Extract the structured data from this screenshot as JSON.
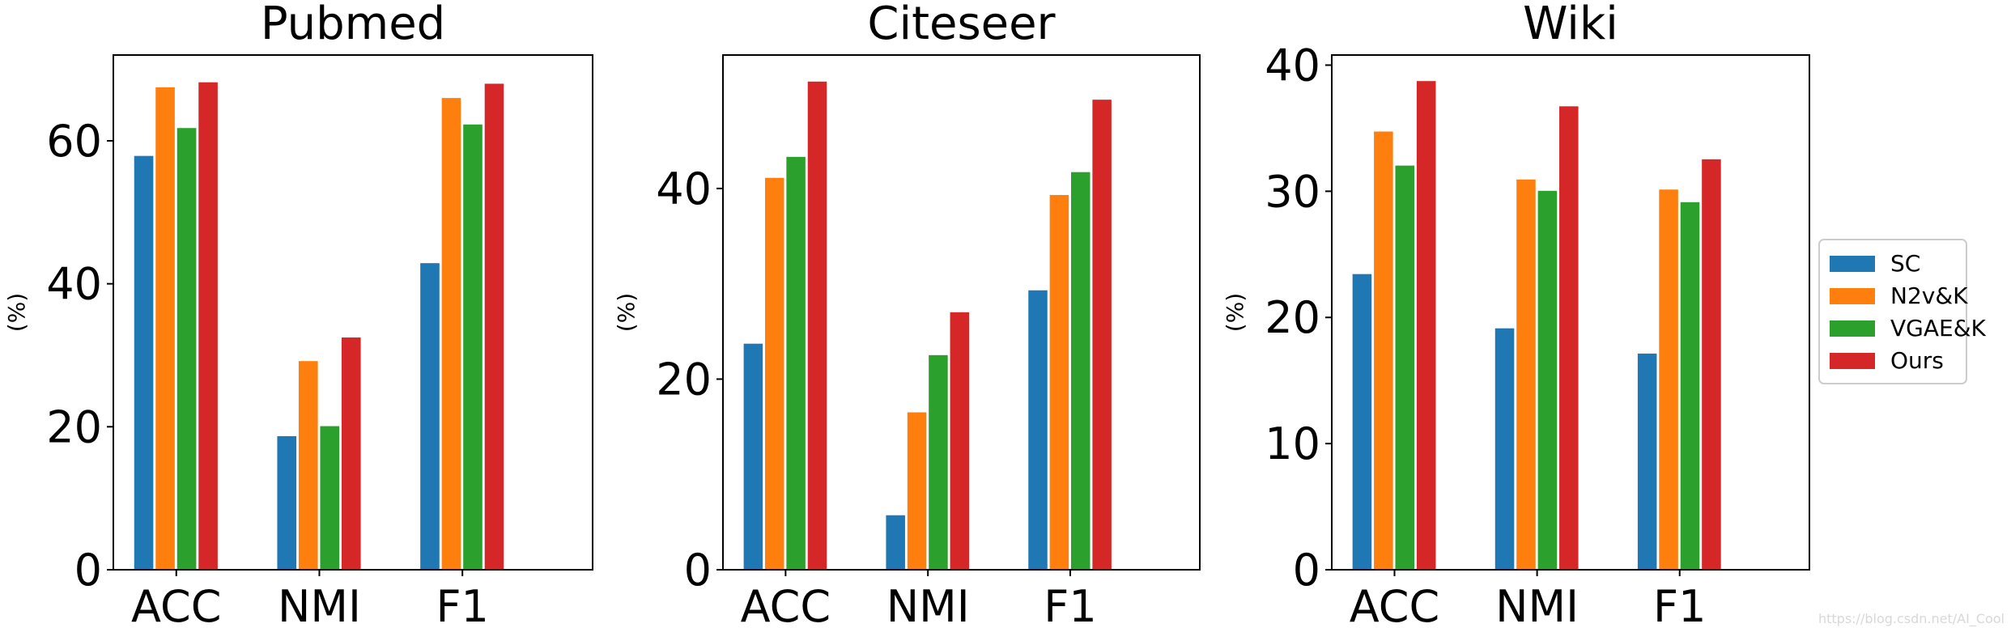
{
  "chart_data": [
    {
      "type": "bar",
      "title": "Pubmed",
      "ylabel": "(%)",
      "categories": [
        "ACC",
        "NMI",
        "F1"
      ],
      "ylim": [
        0,
        72
      ],
      "yticks": [
        0,
        20,
        40,
        60
      ],
      "series": [
        {
          "name": "SC",
          "values": [
            58.0,
            18.8,
            43.0
          ]
        },
        {
          "name": "N2v&K",
          "values": [
            67.6,
            29.3,
            66.1
          ]
        },
        {
          "name": "VGAE&K",
          "values": [
            61.9,
            20.2,
            62.4
          ]
        },
        {
          "name": "Ours",
          "values": [
            68.3,
            32.6,
            68.1
          ]
        }
      ]
    },
    {
      "type": "bar",
      "title": "Citeseer",
      "ylabel": "(%)",
      "categories": [
        "ACC",
        "NMI",
        "F1"
      ],
      "ylim": [
        0,
        54
      ],
      "yticks": [
        0,
        20,
        40
      ],
      "series": [
        {
          "name": "SC",
          "values": [
            23.8,
            5.8,
            29.4
          ]
        },
        {
          "name": "N2v&K",
          "values": [
            41.2,
            16.6,
            39.4
          ]
        },
        {
          "name": "VGAE&K",
          "values": [
            43.4,
            22.6,
            41.8
          ]
        },
        {
          "name": "Ours",
          "values": [
            51.3,
            27.1,
            49.4
          ]
        }
      ]
    },
    {
      "type": "bar",
      "title": "Wiki",
      "ylabel": "(%)",
      "categories": [
        "ACC",
        "NMI",
        "F1"
      ],
      "ylim": [
        0,
        40.8
      ],
      "yticks": [
        0,
        10,
        20,
        30,
        40
      ],
      "series": [
        {
          "name": "SC",
          "values": [
            23.5,
            19.2,
            17.2
          ]
        },
        {
          "name": "N2v&K",
          "values": [
            34.8,
            31.0,
            30.2
          ]
        },
        {
          "name": "VGAE&K",
          "values": [
            32.1,
            30.1,
            29.2
          ]
        },
        {
          "name": "Ours",
          "values": [
            38.8,
            36.8,
            32.6
          ]
        }
      ]
    }
  ],
  "legend": {
    "entries": [
      {
        "name": "SC",
        "color": "#1f77b4"
      },
      {
        "name": "N2v&K",
        "color": "#ff7f0e"
      },
      {
        "name": "VGAE&K",
        "color": "#2ca02c"
      },
      {
        "name": "Ours",
        "color": "#d62728"
      }
    ]
  },
  "watermark": "https://blog.csdn.net/AI_Cool"
}
